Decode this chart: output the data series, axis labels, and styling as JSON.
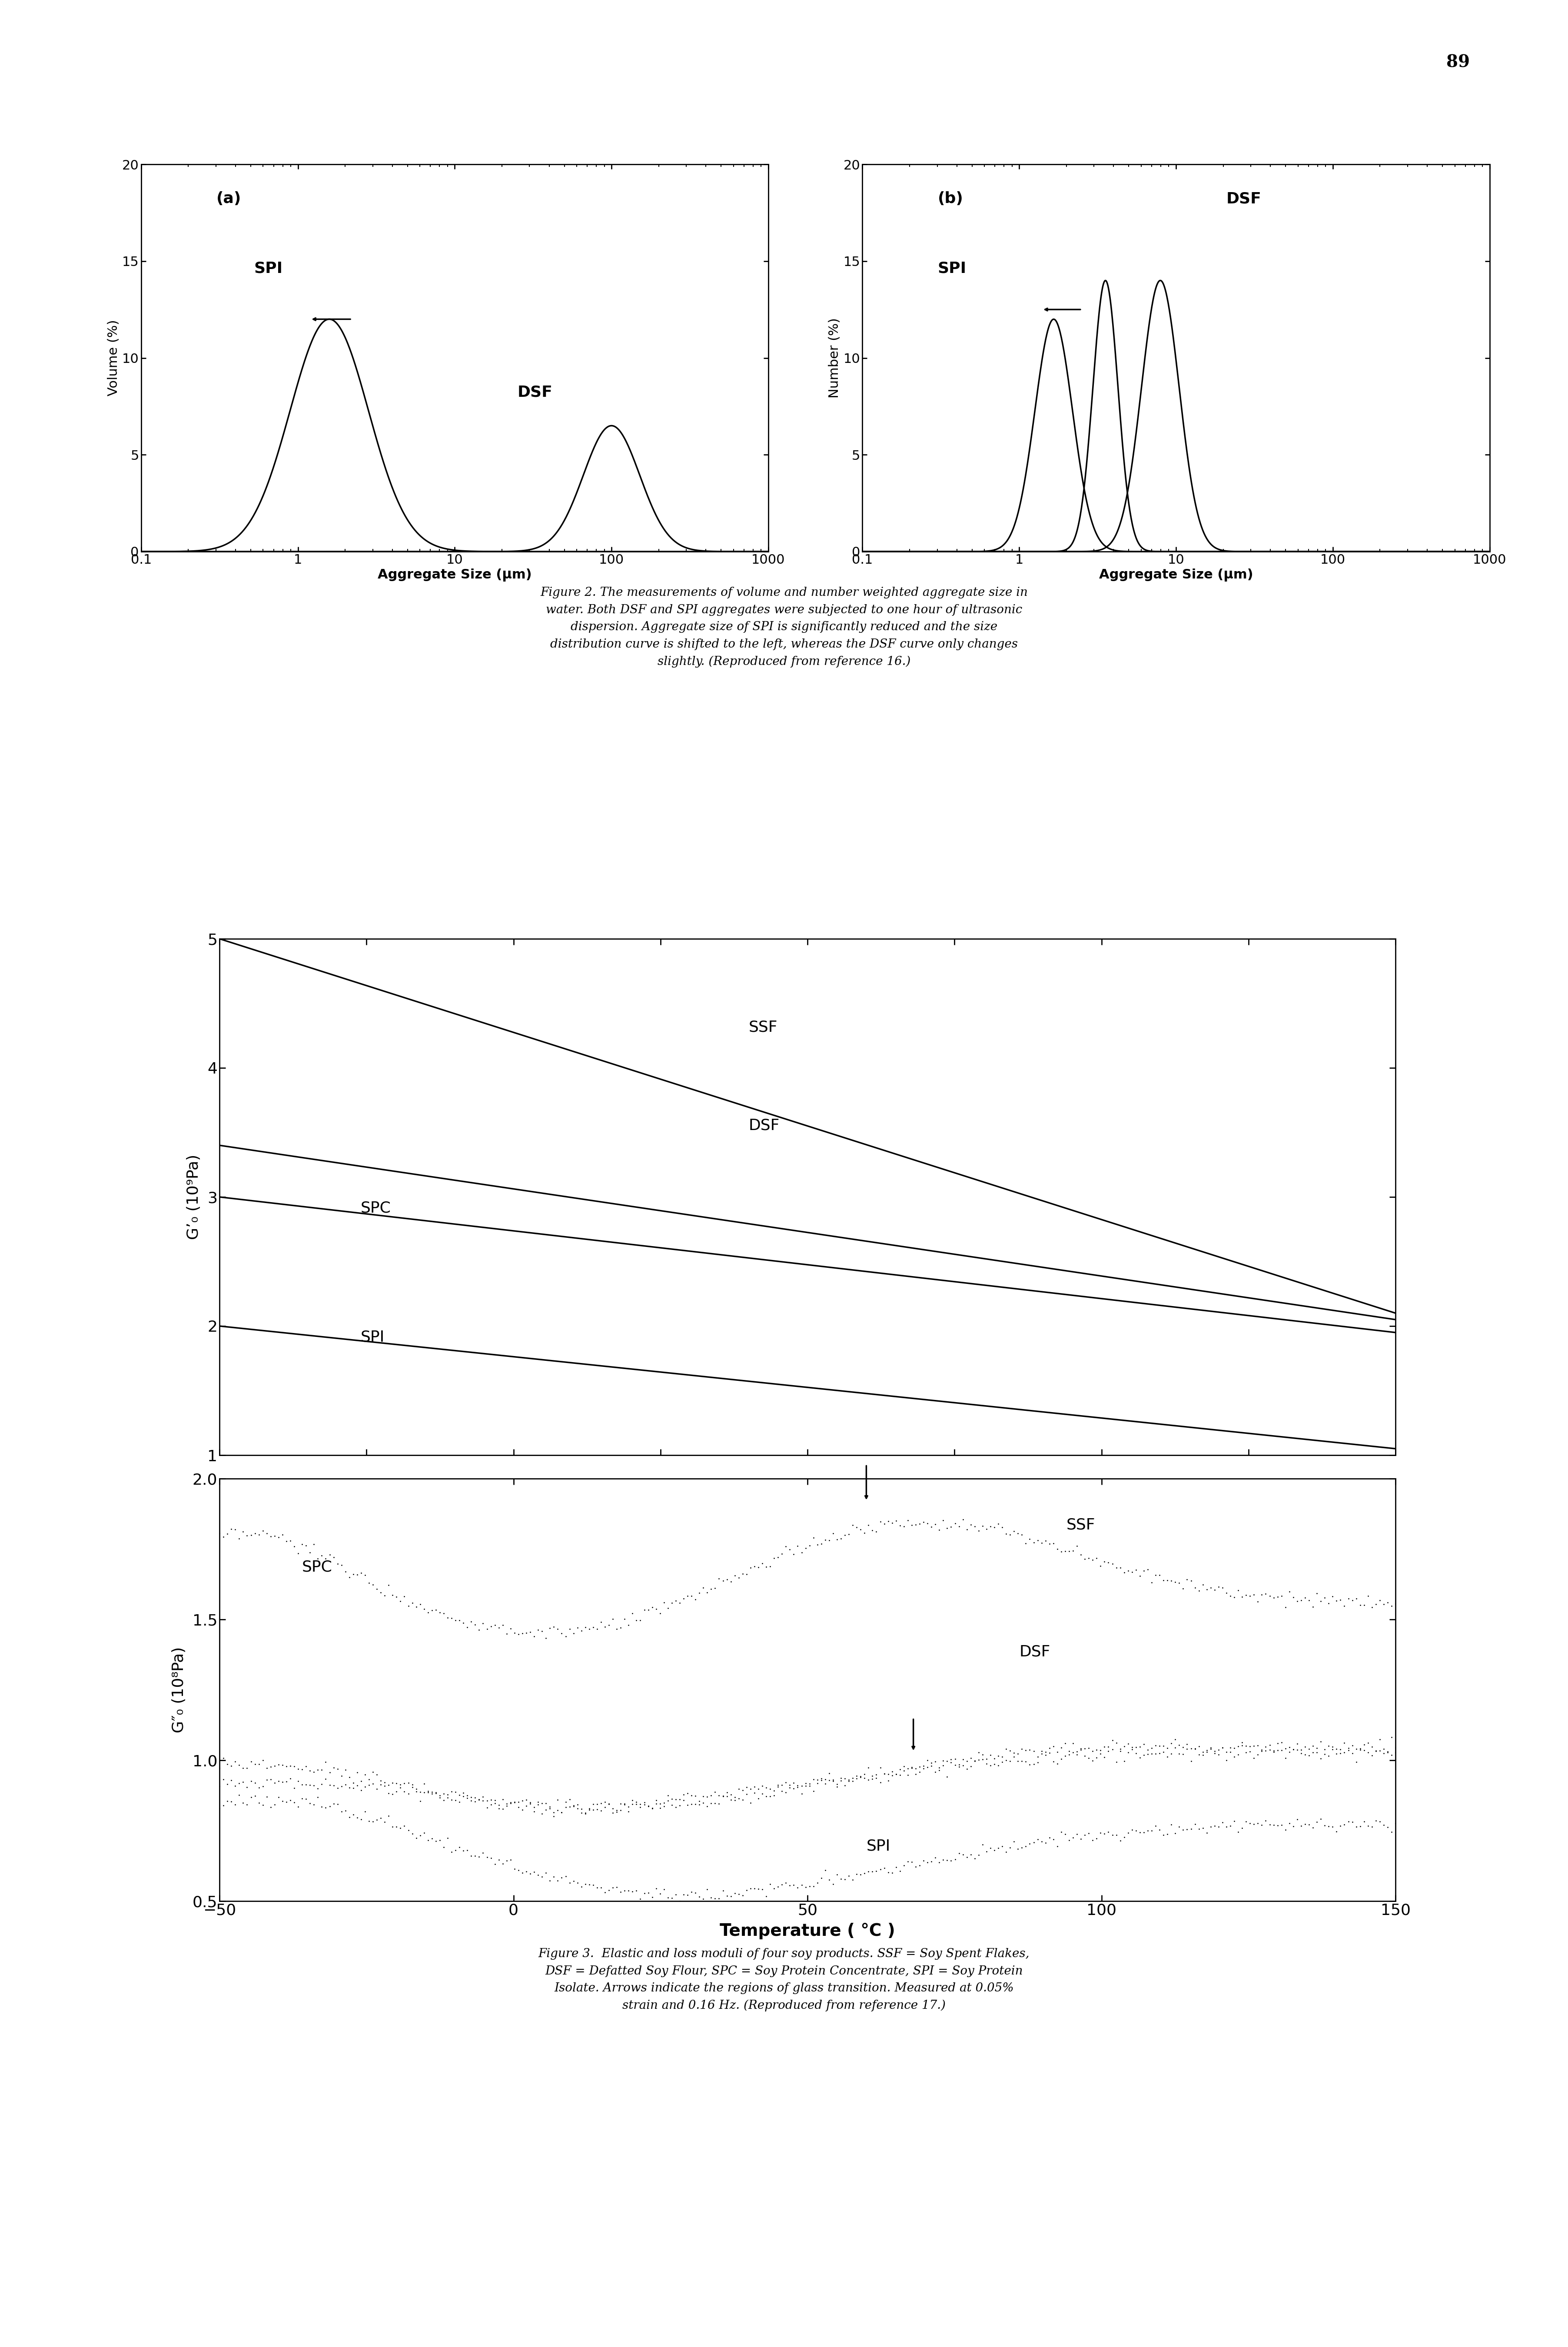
{
  "page_number": "89",
  "fig2_caption": "Figure 2. The measurements of volume and number weighted aggregate size in\nwater. Both DSF and SPI aggregates were subjected to one hour of ultrasonic\ndispersion. Aggregate size of SPI is significantly reduced and the size\ndistribution curve is shifted to the left, whereas the DSF curve only changes\nslightly. (Reproduced from reference 16.)",
  "fig3_caption": "Figure 3.  Elastic and loss moduli of four soy products. SSF = Soy Spent Flakes,\nDSF = Defatted Soy Flour, SPC = Soy Protein Concentrate, SPI = Soy Protein\nIsolate. Arrows indicate the regions of glass transition. Measured at 0.05%\nstrain and 0.16 Hz. (Reproduced from reference 17.)",
  "plot_a_ylabel": "Volume (%)",
  "plot_b_ylabel": "Number (%)",
  "plot_xlabel": "Aggregate Size (μm)",
  "plot_a_label": "(a)",
  "plot_b_label": "(b)",
  "gp_ylabel": "G’₀ (10⁹Pa)",
  "gpp_ylabel": "G″₀ (10⁸Pa)",
  "temp_xlabel": "Temperature ( °C )",
  "temp_xlim": [
    -50,
    150
  ],
  "temp_xticks": [
    -50,
    0,
    50,
    100,
    150
  ],
  "gp_ylim": [
    1,
    5
  ],
  "gp_yticks": [
    1,
    2,
    3,
    4,
    5
  ],
  "gpp_ylim": [
    0.5,
    2.0
  ],
  "gpp_yticks": [
    0.5,
    1.0,
    1.5,
    2.0
  ],
  "background_color": "#ffffff",
  "line_color": "#000000"
}
